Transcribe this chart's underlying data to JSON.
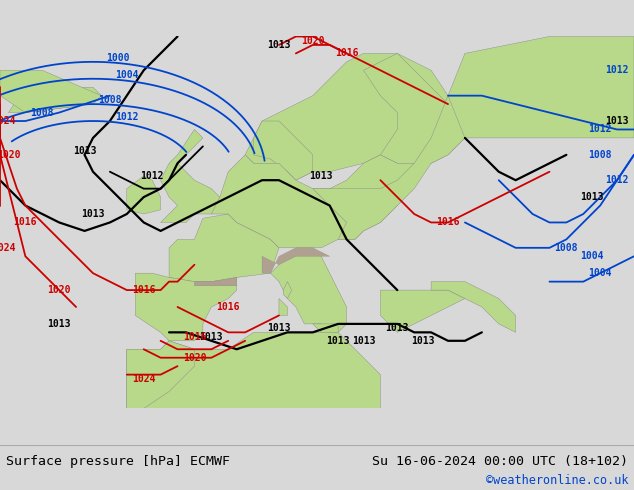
{
  "title_left": "Surface pressure [hPa] ECMWF",
  "title_right": "Su 16-06-2024 00:00 UTC (18+102)",
  "credit": "©weatheronline.co.uk",
  "ocean_color": "#d4e8f4",
  "land_color": "#b8d88a",
  "mountain_color": "#b0a090",
  "footer_bg": "#d8d8d8",
  "red_color": "#cc0000",
  "blue_color": "#0044cc",
  "black_color": "#000000",
  "label_fontsize": 7.0,
  "lw": 1.3
}
